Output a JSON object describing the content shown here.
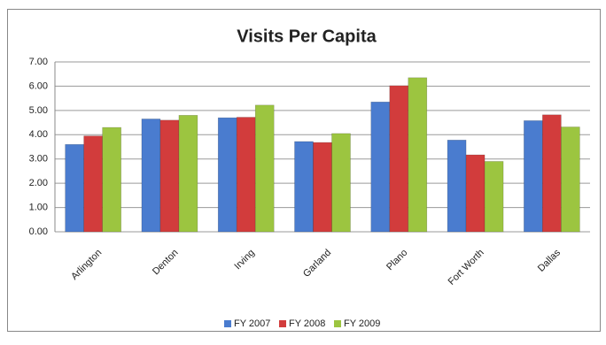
{
  "chart_data": {
    "type": "bar",
    "title": "Visits Per Capita",
    "categories": [
      "Arlington",
      "Denton",
      "Irving",
      "Garland",
      "Plano",
      "Fort Worth",
      "Dallas"
    ],
    "series": [
      {
        "name": "FY 2007",
        "color": "#4a7ccf",
        "values": [
          3.6,
          4.65,
          4.7,
          3.72,
          5.35,
          3.78,
          4.58
        ]
      },
      {
        "name": "FY 2008",
        "color": "#d23c3c",
        "values": [
          3.95,
          4.6,
          4.72,
          3.68,
          6.02,
          3.17,
          4.82
        ]
      },
      {
        "name": "FY 2009",
        "color": "#9cc540",
        "values": [
          4.3,
          4.8,
          5.22,
          4.05,
          6.35,
          2.9,
          4.32
        ]
      }
    ],
    "ylim": [
      0,
      7
    ],
    "yticks": [
      {
        "value": 0,
        "label": "0.00"
      },
      {
        "value": 1,
        "label": "1.00"
      },
      {
        "value": 2,
        "label": "2.00"
      },
      {
        "value": 3,
        "label": "3.00"
      },
      {
        "value": 4,
        "label": "4.00"
      },
      {
        "value": 5,
        "label": "5.00"
      },
      {
        "value": 6,
        "label": "6.00"
      },
      {
        "value": 7,
        "label": "7.00"
      }
    ],
    "grid": true,
    "legend": "bottom"
  }
}
